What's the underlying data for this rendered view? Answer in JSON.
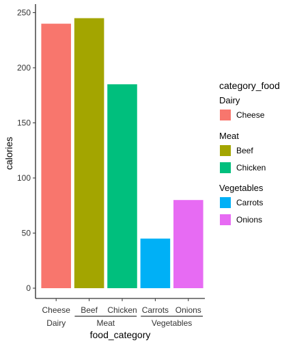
{
  "chart_data": {
    "type": "bar",
    "categories": [
      "Cheese",
      "Beef",
      "Chicken",
      "Carrots",
      "Onions"
    ],
    "groups": [
      {
        "name": "Dairy",
        "members": [
          "Cheese"
        ]
      },
      {
        "name": "Meat",
        "members": [
          "Beef",
          "Chicken"
        ]
      },
      {
        "name": "Vegetables",
        "members": [
          "Carrots",
          "Onions"
        ]
      }
    ],
    "values": [
      240,
      245,
      185,
      45,
      80
    ],
    "colors": [
      "#F8766D",
      "#A3A500",
      "#00BF7D",
      "#00B0F6",
      "#E76BF3"
    ],
    "ylim": [
      0,
      257.25
    ],
    "yticks": [
      0,
      50,
      100,
      150,
      200,
      250
    ],
    "xlabel": "food_category",
    "ylabel": "calories",
    "legend": {
      "title": "category_food",
      "position": "right",
      "sections": [
        {
          "name": "Dairy",
          "items": [
            {
              "label": "Cheese",
              "color": "#F8766D"
            }
          ]
        },
        {
          "name": "Meat",
          "items": [
            {
              "label": "Beef",
              "color": "#A3A500"
            },
            {
              "label": "Chicken",
              "color": "#00BF7D"
            }
          ]
        },
        {
          "name": "Vegetables",
          "items": [
            {
              "label": "Carrots",
              "color": "#00B0F6"
            },
            {
              "label": "Onions",
              "color": "#E76BF3"
            }
          ]
        }
      ]
    },
    "grid": false
  }
}
